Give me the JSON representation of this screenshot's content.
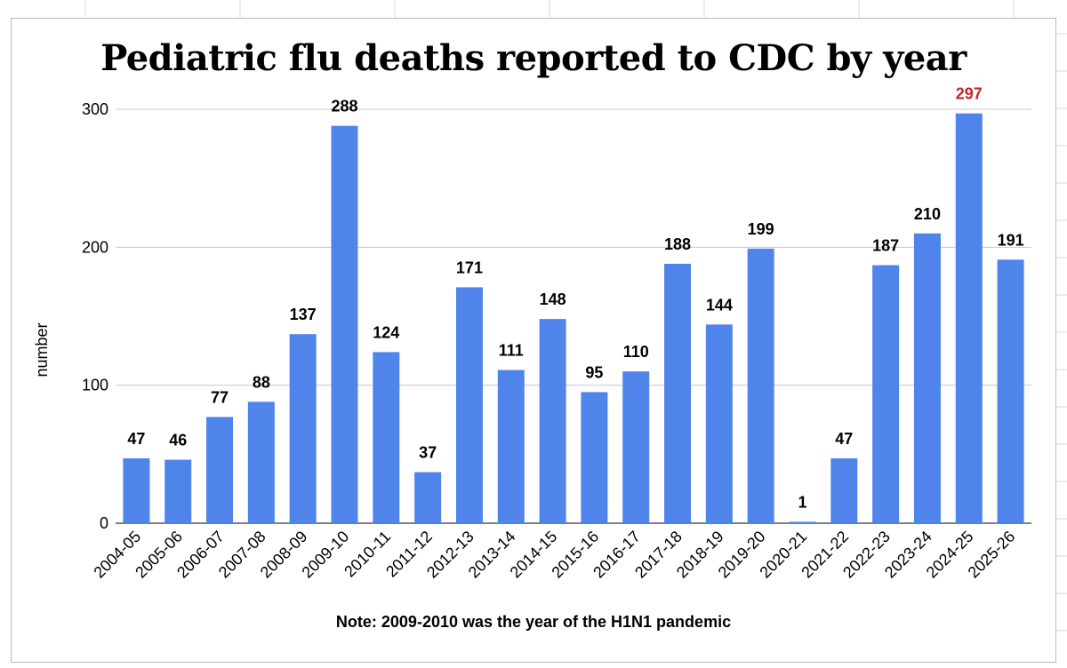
{
  "colors": {
    "bar": "#4f84eb",
    "highlight_label": "#c0282b",
    "label": "#000000",
    "gridline": "#c8c8c8"
  },
  "chart_data": {
    "type": "bar",
    "title": "Pediatric flu deaths reported to CDC by year",
    "ylabel": "number",
    "xlabel": "",
    "note": "Note: 2009-2010 was the year of the H1N1 pandemic",
    "ylim": [
      0,
      300
    ],
    "yticks": [
      0,
      100,
      200,
      300
    ],
    "grid": true,
    "legend": "none",
    "highlight_index": 20,
    "categories": [
      "2004-05",
      "2005-06",
      "2006-07",
      "2007-08",
      "2008-09",
      "2009-10",
      "2010-11",
      "2011-12",
      "2012-13",
      "2013-14",
      "2014-15",
      "2015-16",
      "2016-17",
      "2017-18",
      "2018-19",
      "2019-20",
      "2020-21",
      "2021-22",
      "2022-23",
      "2023-24",
      "2024-25",
      "2025-26"
    ],
    "values": [
      47,
      46,
      77,
      88,
      137,
      288,
      124,
      37,
      171,
      111,
      148,
      95,
      110,
      188,
      144,
      199,
      1,
      47,
      187,
      210,
      297,
      191
    ]
  }
}
